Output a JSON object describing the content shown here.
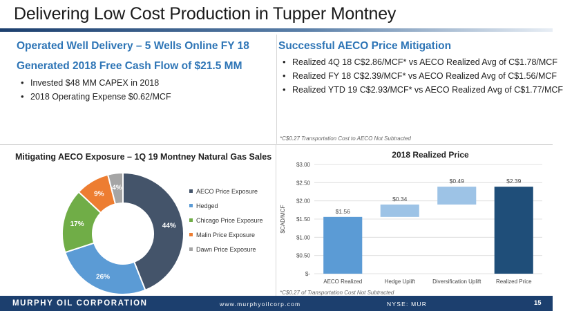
{
  "slide": {
    "title": "Delivering Low Cost Production in Tupper Montney",
    "page_number": "15"
  },
  "left_top": {
    "heading1": "Operated Well Delivery – 5 Wells Online FY 18",
    "heading2": "Generated 2018 Free Cash Flow of $21.5 MM",
    "bullets": [
      "Invested $48 MM CAPEX in 2018",
      "2018 Operating Expense $0.62/MCF"
    ]
  },
  "right_top": {
    "heading": "Successful AECO Price Mitigation",
    "bullets": [
      "Realized 4Q 18 C$2.86/MCF* vs AECO Realized Avg of C$1.78/MCF",
      "Realized FY 18 C$2.39/MCF* vs AECO Realized Avg of C$1.56/MCF",
      "Realized YTD 19 C$2.93/MCF* vs AECO Realized Avg of C$1.77/MCF"
    ],
    "footnote": "*C$0.27 Transportation Cost to AECO Not Subtracted"
  },
  "donut_chart": {
    "title": "Mitigating AECO Exposure – 1Q 19 Montney Natural Gas Sales",
    "chart_data": {
      "type": "pie",
      "categories": [
        "AECO Price Exposure",
        "Hedged",
        "Chicago Price Exposure",
        "Malin Price Exposure",
        "Dawn Price Exposure"
      ],
      "values": [
        44,
        26,
        17,
        9,
        4
      ],
      "labels": [
        "44%",
        "26%",
        "17%",
        "9%",
        "4%"
      ],
      "colors": [
        "#44546a",
        "#5b9bd5",
        "#70ad47",
        "#ed7d31",
        "#a5a5a5"
      ],
      "legend": "right"
    }
  },
  "bar_chart": {
    "title": "2018 Realized Price",
    "footnote": "*C$0.27 of Transportation Cost Not Subtracted",
    "chart_data": {
      "type": "bar",
      "subtype": "waterfall",
      "title": "2018 Realized Price",
      "ylabel": "$CAD/MCF",
      "ylim": [
        0,
        3.0
      ],
      "yticks": [
        0,
        0.5,
        1.0,
        1.5,
        2.0,
        2.5,
        3.0
      ],
      "ytick_labels": [
        "$-",
        "$0.50",
        "$1.00",
        "$1.50",
        "$2.00",
        "$2.50",
        "$3.00"
      ],
      "categories": [
        "AECO Realized",
        "Hedge Uplift",
        "Diversification Uplift",
        "Realized Price"
      ],
      "bases": [
        0,
        1.56,
        1.9,
        0
      ],
      "values": [
        1.56,
        0.34,
        0.49,
        2.39
      ],
      "labels": [
        "$1.56",
        "$0.34",
        "$0.49",
        "$2.39"
      ],
      "colors": [
        "#5b9bd5",
        "#9dc3e6",
        "#9dc3e6",
        "#1f4e79"
      ],
      "grid": true
    }
  },
  "footer": {
    "company": "MURPHY OIL CORPORATION",
    "website": "www.murphyoilcorp.com",
    "ticker": "NYSE: MUR"
  }
}
